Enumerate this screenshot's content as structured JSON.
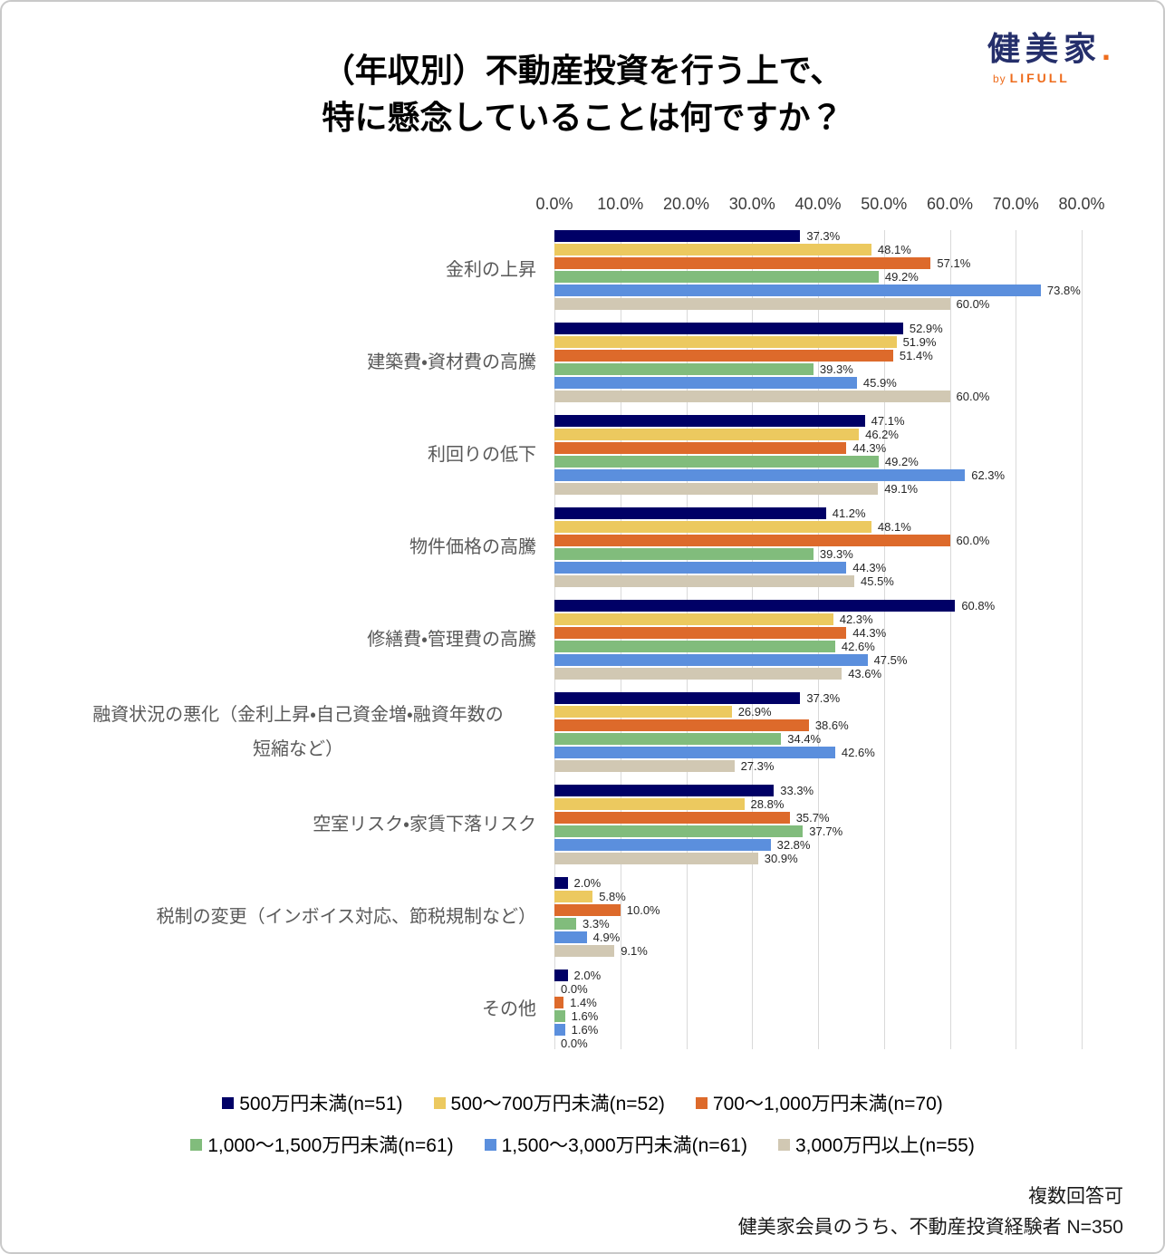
{
  "page": {
    "title_line1": "（年収別）不動産投資を行う上で、",
    "title_line2": "特に懸念していることは何ですか？",
    "logo": {
      "brand": "健美家",
      "dot": ".",
      "by": "by",
      "company": "LIFULL",
      "brand_color": "#252f6b",
      "accent_color": "#ee6c1d"
    },
    "footer_line1": "複数回答可",
    "footer_line2": "健美家会員のうち、不動産投資経験者 N=350"
  },
  "chart_data": {
    "type": "bar",
    "orientation": "horizontal",
    "title": "（年収別）不動産投資を行う上で、特に懸念していることは何ですか？",
    "grid": true,
    "legend_position": "bottom",
    "value_suffix": "%",
    "x_axis": {
      "min": 0,
      "max": 80,
      "ticks": [
        "0.0%",
        "10.0%",
        "20.0%",
        "30.0%",
        "40.0%",
        "50.0%",
        "60.0%",
        "70.0%",
        "80.0%"
      ]
    },
    "categories": [
      "金利の上昇",
      "建築費・資材費の高騰",
      "利回りの低下",
      "物件価格の高騰",
      "修繕費・管理費の高騰",
      "融資状況の悪化（金利上昇・自己資金増・融資年数の短縮など）",
      "空室リスク・家賃下落リスク",
      "税制の変更（インボイス対応、節税規制など）",
      "その他"
    ],
    "series": [
      {
        "name": "500万円未満(n=51)",
        "color": "#000066",
        "values": [
          37.3,
          52.9,
          47.1,
          41.2,
          60.8,
          37.3,
          33.3,
          2.0,
          2.0
        ]
      },
      {
        "name": "500〜700万円未満(n=52)",
        "color": "#ecc95f",
        "values": [
          48.1,
          51.9,
          46.2,
          48.1,
          42.3,
          26.9,
          28.8,
          5.8,
          0.0
        ]
      },
      {
        "name": "700〜1,000万円未満(n=70)",
        "color": "#dd6a2b",
        "values": [
          57.1,
          51.4,
          44.3,
          60.0,
          44.3,
          38.6,
          35.7,
          10.0,
          1.4
        ]
      },
      {
        "name": "1,000〜1,500万円未満(n=61)",
        "color": "#81bc7c",
        "values": [
          49.2,
          39.3,
          49.2,
          39.3,
          42.6,
          34.4,
          37.7,
          3.3,
          1.6
        ]
      },
      {
        "name": "1,500〜3,000万円未満(n=61)",
        "color": "#5b8fdd",
        "values": [
          73.8,
          45.9,
          62.3,
          44.3,
          47.5,
          42.6,
          32.8,
          4.9,
          1.6
        ]
      },
      {
        "name": "3,000万円以上(n=55)",
        "color": "#d1c8b3",
        "values": [
          60.0,
          60.0,
          49.1,
          45.5,
          43.6,
          27.3,
          30.9,
          9.1,
          0.0
        ]
      }
    ]
  }
}
